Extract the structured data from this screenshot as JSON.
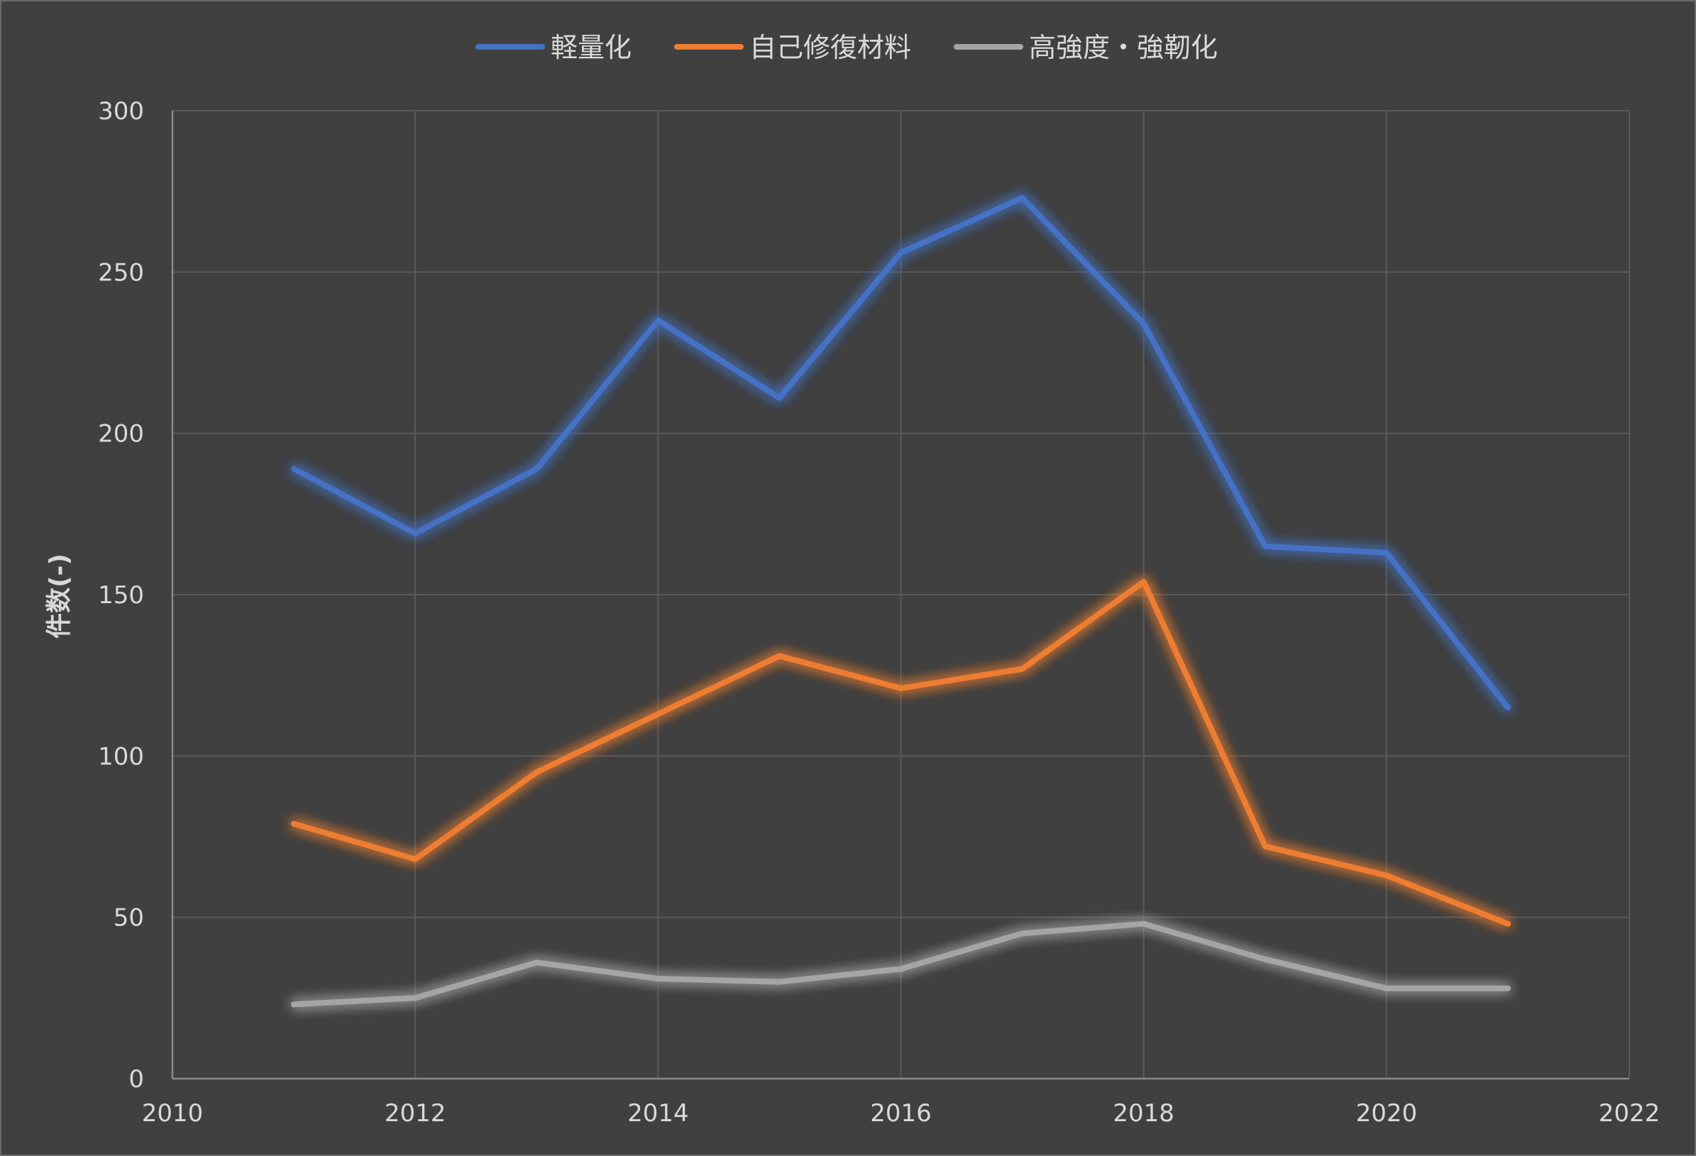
{
  "chart_data": {
    "type": "line",
    "title": "",
    "xlabel": "",
    "ylabel": "件数(-)",
    "xlim": [
      2010,
      2022
    ],
    "ylim": [
      0,
      300
    ],
    "x_ticks": [
      "2010",
      "2012",
      "2014",
      "2016",
      "2018",
      "2020",
      "2022"
    ],
    "y_ticks": [
      "0",
      "50",
      "100",
      "150",
      "200",
      "250",
      "300"
    ],
    "grid": true,
    "legend_position": "top",
    "x": [
      2011,
      2012,
      2013,
      2014,
      2015,
      2016,
      2017,
      2018,
      2019,
      2020,
      2021
    ],
    "series": [
      {
        "name": "軽量化",
        "color": "#4472c4",
        "values": [
          189,
          169,
          189,
          235,
          211,
          256,
          273,
          234,
          165,
          163,
          115
        ]
      },
      {
        "name": "自己修復材料",
        "color": "#ed7d31",
        "values": [
          79,
          68,
          95,
          113,
          131,
          121,
          127,
          154,
          72,
          63,
          48
        ]
      },
      {
        "name": "高強度・強靭化",
        "color": "#a5a5a5",
        "values": [
          23,
          25,
          36,
          31,
          30,
          34,
          45,
          48,
          37,
          28,
          28
        ]
      }
    ]
  },
  "colors": {
    "background": "#404040",
    "grid": "#5a5a5a",
    "text": "#d9d9d9"
  }
}
